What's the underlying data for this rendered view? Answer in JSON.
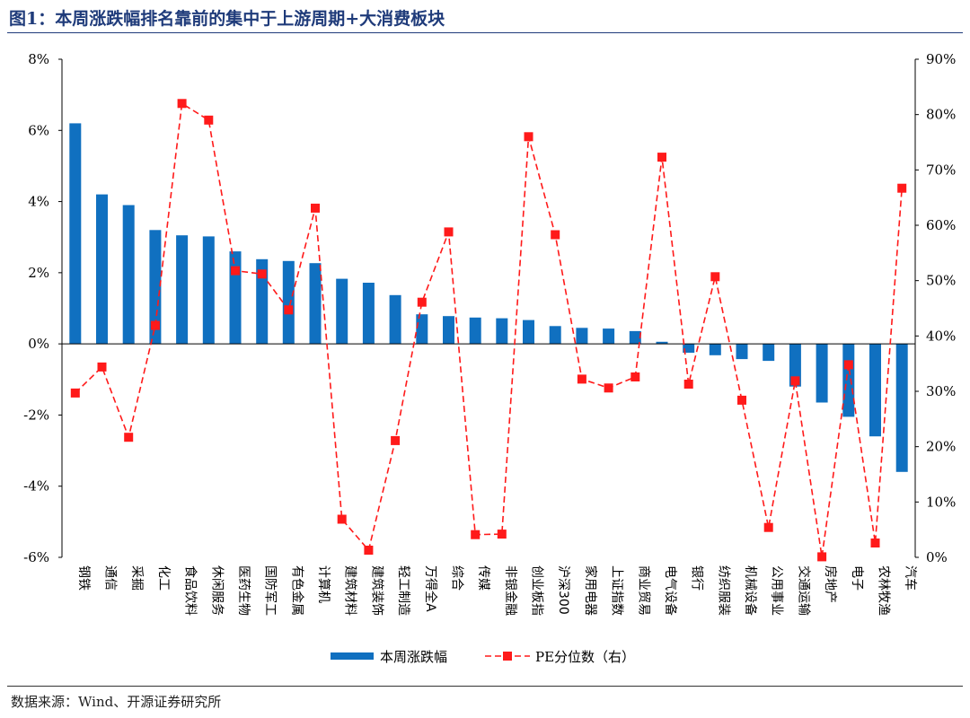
{
  "title": "图1：本周涨跌幅排名靠前的集中于上游周期+大消费板块",
  "source": "数据来源：Wind、开源证券研究所",
  "colors": {
    "bar": "#1070c0",
    "line": "#ff1a1a",
    "axis": "#000000",
    "title": "#1f3b7a"
  },
  "chart_data": {
    "type": "bar+line",
    "title": "图1：本周涨跌幅排名靠前的集中于上游周期+大消费板块",
    "categories": [
      "钢铁",
      "通信",
      "采掘",
      "化工",
      "食品饮料",
      "休闲服务",
      "医药生物",
      "国防军工",
      "有色金属",
      "计算机",
      "建筑材料",
      "建筑装饰",
      "轻工制造",
      "万得全A",
      "综合",
      "传媒",
      "非银金融",
      "创业板指",
      "沪深300",
      "家用电器",
      "上证指数",
      "商业贸易",
      "电气设备",
      "银行",
      "纺织服装",
      "机械设备",
      "公用事业",
      "交通运输",
      "房地产",
      "电子",
      "农林牧渔",
      "汽车"
    ],
    "left_axis": {
      "min": -6,
      "max": 8,
      "step": 2,
      "unit": "%",
      "ticks": [
        "-6%",
        "-4%",
        "-2%",
        "0%",
        "2%",
        "4%",
        "6%",
        "8%"
      ]
    },
    "right_axis": {
      "min": 0,
      "max": 90,
      "step": 10,
      "unit": "%",
      "ticks": [
        "0%",
        "10%",
        "20%",
        "30%",
        "40%",
        "50%",
        "60%",
        "70%",
        "80%",
        "90%"
      ]
    },
    "series": [
      {
        "name": "本周涨跌幅",
        "type": "bar",
        "axis": "left",
        "values": [
          6.2,
          4.2,
          3.9,
          3.2,
          3.05,
          3.02,
          2.6,
          2.38,
          2.33,
          2.27,
          1.83,
          1.72,
          1.37,
          0.83,
          0.78,
          0.74,
          0.72,
          0.67,
          0.5,
          0.45,
          0.43,
          0.36,
          0.06,
          -0.25,
          -0.32,
          -0.43,
          -0.48,
          -1.2,
          -1.65,
          -2.05,
          -2.6,
          -3.6
        ]
      },
      {
        "name": "PE分位数（右）",
        "type": "line",
        "axis": "right",
        "values": [
          29.7,
          34.4,
          21.7,
          41.9,
          82.0,
          79.0,
          51.8,
          51.2,
          44.7,
          63.1,
          6.9,
          1.3,
          21.1,
          46.1,
          58.8,
          4.1,
          4.2,
          76.0,
          58.3,
          32.2,
          30.6,
          32.6,
          72.3,
          31.3,
          50.7,
          28.4,
          5.4,
          31.9,
          0.1,
          34.8,
          2.6,
          66.7
        ]
      }
    ],
    "legend": {
      "position": "bottom-center",
      "entries": [
        "本周涨跌幅",
        "PE分位数（右）"
      ]
    }
  }
}
